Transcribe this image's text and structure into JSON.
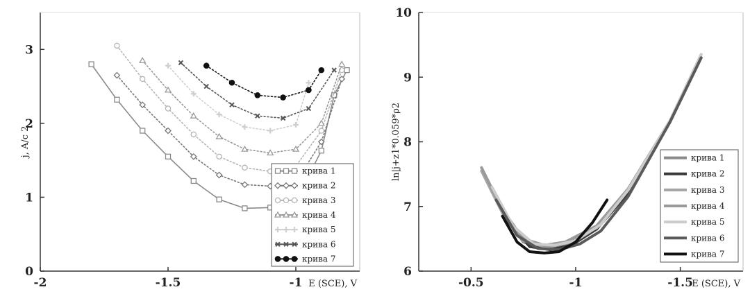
{
  "chart_data": [
    {
      "type": "line",
      "xlabel": "E (SCE), V",
      "ylabel": "j, A/c 2",
      "xlim": [
        -2,
        -0.75
      ],
      "ylim": [
        0,
        3.5
      ],
      "xticks": [
        -2,
        -1.5,
        -1
      ],
      "xtick_labels": [
        "-2",
        "-1.5",
        "-1"
      ],
      "yticks": [
        0,
        1,
        2,
        3
      ],
      "ytick_labels": [
        "0",
        "1",
        "2",
        "3"
      ],
      "grid": false,
      "legend_position": "bottom-right",
      "series": [
        {
          "name": "крива 1",
          "color": "#8a8a8a",
          "marker": "square",
          "x": [
            -1.8,
            -1.7,
            -1.6,
            -1.5,
            -1.4,
            -1.3,
            -1.2,
            -1.1,
            -1.0,
            -0.9,
            -0.85,
            -0.8
          ],
          "y": [
            2.8,
            2.32,
            1.9,
            1.55,
            1.22,
            0.97,
            0.85,
            0.86,
            0.95,
            1.63,
            2.38,
            2.72
          ]
        },
        {
          "name": "крива 2",
          "color": "#777777",
          "marker": "diamond",
          "x": [
            -1.7,
            -1.6,
            -1.5,
            -1.4,
            -1.3,
            -1.2,
            -1.1,
            -1.0,
            -0.9,
            -0.82
          ],
          "y": [
            2.65,
            2.25,
            1.9,
            1.55,
            1.3,
            1.17,
            1.15,
            1.2,
            1.75,
            2.6
          ]
        },
        {
          "name": "крива 3",
          "color": "#b5b5b5",
          "marker": "circle",
          "x": [
            -1.7,
            -1.6,
            -1.5,
            -1.4,
            -1.3,
            -1.2,
            -1.1,
            -1.0,
            -0.9,
            -0.82
          ],
          "y": [
            3.05,
            2.6,
            2.2,
            1.85,
            1.55,
            1.4,
            1.35,
            1.42,
            1.9,
            2.72
          ]
        },
        {
          "name": "крива 4",
          "color": "#999999",
          "marker": "triangle",
          "x": [
            -1.6,
            -1.5,
            -1.4,
            -1.3,
            -1.2,
            -1.1,
            -1.0,
            -0.9,
            -0.82
          ],
          "y": [
            2.85,
            2.45,
            2.1,
            1.82,
            1.65,
            1.6,
            1.65,
            2.0,
            2.8
          ]
        },
        {
          "name": "крива 5",
          "color": "#cfcfcf",
          "marker": "plus",
          "x": [
            -1.5,
            -1.4,
            -1.3,
            -1.2,
            -1.1,
            -1.0,
            -0.95
          ],
          "y": [
            2.78,
            2.4,
            2.12,
            1.95,
            1.9,
            1.98,
            2.55
          ]
        },
        {
          "name": "крива 6",
          "color": "#555555",
          "marker": "cross",
          "x": [
            -1.45,
            -1.35,
            -1.25,
            -1.15,
            -1.05,
            -0.95,
            -0.85
          ],
          "y": [
            2.82,
            2.5,
            2.25,
            2.1,
            2.07,
            2.2,
            2.72
          ]
        },
        {
          "name": "крива 7",
          "color": "#111111",
          "marker": "filled-circle",
          "x": [
            -1.35,
            -1.25,
            -1.15,
            -1.05,
            -0.95,
            -0.9
          ],
          "y": [
            2.78,
            2.55,
            2.38,
            2.35,
            2.45,
            2.72
          ]
        }
      ]
    },
    {
      "type": "line",
      "xlabel": "E (SCE), V",
      "ylabel": "ln|j+z1*0.059*ρ2",
      "xlim": [
        -0.25,
        -1.8
      ],
      "ylim": [
        6,
        10
      ],
      "xticks": [
        -0.5,
        -1,
        -1.5
      ],
      "xtick_labels": [
        "-0.5",
        "-1",
        "-1.5"
      ],
      "yticks": [
        6,
        7,
        8,
        9,
        10
      ],
      "ytick_labels": [
        "6",
        "7",
        "8",
        "9",
        "10"
      ],
      "grid": false,
      "legend_position": "bottom-right",
      "series": [
        {
          "name": "крива 1",
          "color": "#8a8a8a",
          "x": [
            -0.55,
            -0.65,
            -0.75,
            -0.85,
            -0.95,
            -1.1,
            -1.25,
            -1.45,
            -1.6
          ],
          "y": [
            7.6,
            6.9,
            6.45,
            6.35,
            6.4,
            6.65,
            7.25,
            8.3,
            9.35
          ]
        },
        {
          "name": "крива 2",
          "color": "#3a3a3a",
          "x": [
            -0.58,
            -0.68,
            -0.78,
            -0.88,
            -0.98,
            -1.1,
            -1.25,
            -1.45,
            -1.6
          ],
          "y": [
            7.4,
            6.75,
            6.38,
            6.33,
            6.4,
            6.65,
            7.2,
            8.3,
            9.3
          ]
        },
        {
          "name": "крива 3",
          "color": "#a5a5a5",
          "x": [
            -0.55,
            -0.65,
            -0.75,
            -0.85,
            -0.95,
            -1.1,
            -1.25,
            -1.45,
            -1.6
          ],
          "y": [
            7.55,
            6.9,
            6.47,
            6.38,
            6.43,
            6.67,
            7.25,
            8.3,
            9.3
          ]
        },
        {
          "name": "крива 4",
          "color": "#9a9a9a",
          "x": [
            -0.55,
            -0.65,
            -0.75,
            -0.85,
            -0.95,
            -1.1,
            -1.25,
            -1.45,
            -1.6
          ],
          "y": [
            7.6,
            6.95,
            6.5,
            6.4,
            6.45,
            6.7,
            7.27,
            8.32,
            9.35
          ]
        },
        {
          "name": "крива 5",
          "color": "#cccccc",
          "x": [
            -0.6,
            -0.7,
            -0.8,
            -0.9,
            -1.0,
            -1.12,
            -1.25,
            -1.45,
            -1.6
          ],
          "y": [
            7.3,
            6.7,
            6.42,
            6.4,
            6.47,
            6.72,
            7.25,
            8.32,
            9.35
          ]
        },
        {
          "name": "крива 6",
          "color": "#5a5a5a",
          "x": [
            -0.62,
            -0.72,
            -0.82,
            -0.92,
            -1.02,
            -1.12,
            -1.25,
            -1.45,
            -1.6
          ],
          "y": [
            7.1,
            6.55,
            6.35,
            6.33,
            6.42,
            6.62,
            7.15,
            8.3,
            9.3
          ]
        },
        {
          "name": "крива 7",
          "color": "#111111",
          "x": [
            -0.65,
            -0.72,
            -0.78,
            -0.85,
            -0.92,
            -1.0,
            -1.08,
            -1.15
          ],
          "y": [
            6.85,
            6.45,
            6.3,
            6.28,
            6.3,
            6.45,
            6.75,
            7.1
          ]
        }
      ]
    }
  ]
}
